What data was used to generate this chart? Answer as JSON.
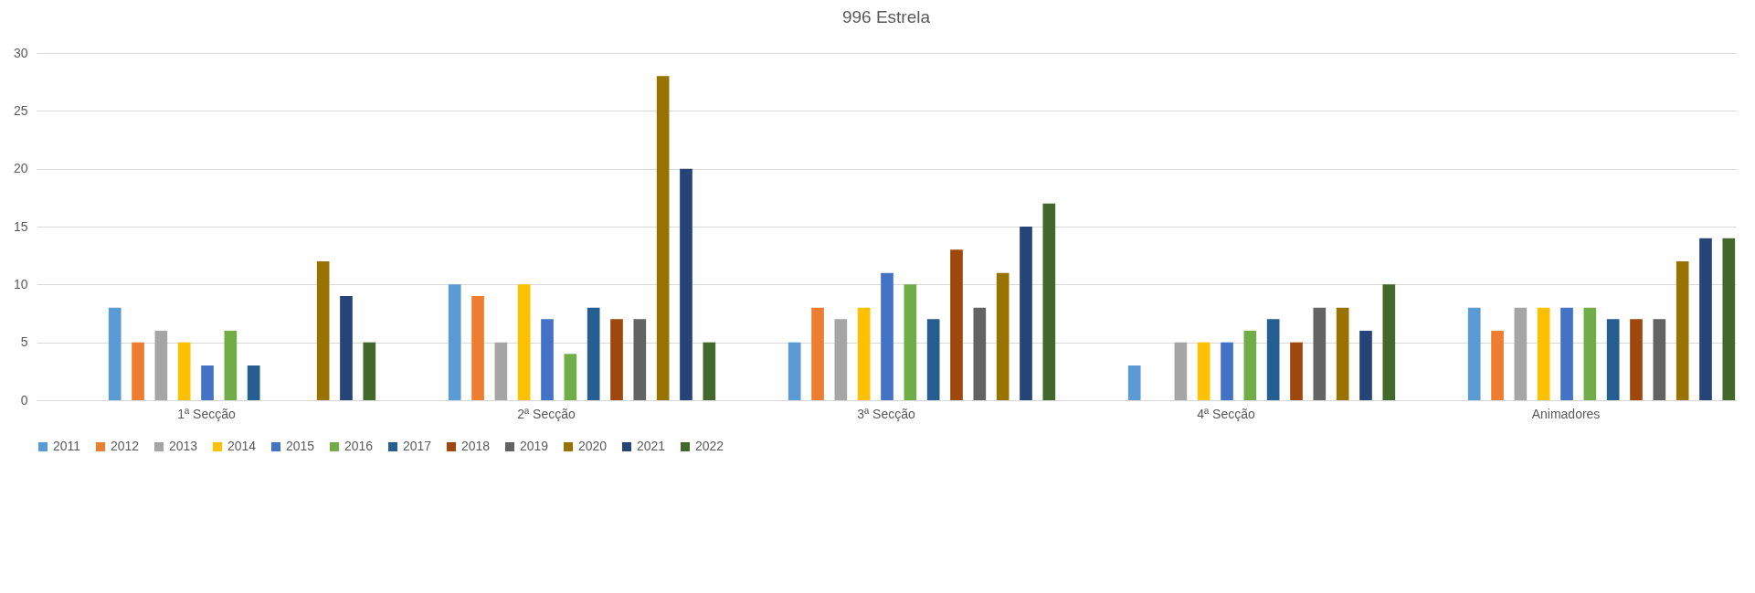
{
  "chart_data": {
    "type": "bar",
    "title": "996 Estrela",
    "categories": [
      "1ª Secção",
      "2ª Secção",
      "3ª Secção",
      "4ª Secção",
      "Animadores"
    ],
    "series": [
      {
        "name": "2011",
        "color": "#5b9bd5",
        "values": [
          8,
          10,
          5,
          3,
          8
        ]
      },
      {
        "name": "2012",
        "color": "#ed7d31",
        "values": [
          5,
          9,
          8,
          null,
          6
        ]
      },
      {
        "name": "2013",
        "color": "#a5a5a5",
        "values": [
          6,
          5,
          7,
          5,
          8
        ]
      },
      {
        "name": "2014",
        "color": "#ffc000",
        "values": [
          5,
          10,
          8,
          5,
          8
        ]
      },
      {
        "name": "2015",
        "color": "#4472c4",
        "values": [
          3,
          7,
          11,
          5,
          8
        ]
      },
      {
        "name": "2016",
        "color": "#70ad47",
        "values": [
          6,
          4,
          10,
          6,
          8
        ]
      },
      {
        "name": "2017",
        "color": "#255e91",
        "values": [
          3,
          8,
          7,
          7,
          7
        ]
      },
      {
        "name": "2018",
        "color": "#9e480e",
        "values": [
          null,
          7,
          13,
          5,
          7
        ]
      },
      {
        "name": "2019",
        "color": "#636363",
        "values": [
          null,
          7,
          8,
          8,
          7
        ]
      },
      {
        "name": "2020",
        "color": "#997300",
        "values": [
          12,
          28,
          11,
          8,
          12
        ]
      },
      {
        "name": "2021",
        "color": "#264478",
        "values": [
          9,
          20,
          15,
          6,
          14
        ]
      },
      {
        "name": "2022",
        "color": "#43682b",
        "values": [
          5,
          5,
          17,
          10,
          14
        ]
      }
    ],
    "ylim": [
      0,
      30
    ],
    "yticks": [
      0,
      5,
      10,
      15,
      20,
      25,
      30
    ],
    "grid": "y",
    "legend": "bottom"
  }
}
